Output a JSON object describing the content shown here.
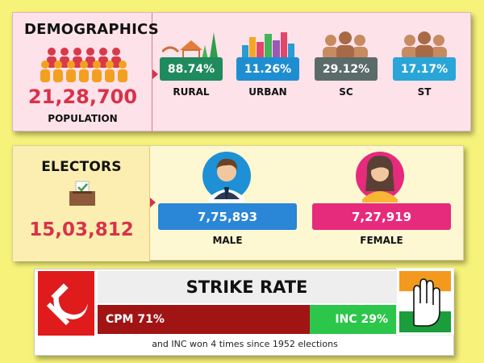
{
  "demographics": {
    "title": "DEMOGRAPHICS",
    "population_value": "21,28,700",
    "population_label": "POPULATION",
    "stats": [
      {
        "value": "88.74%",
        "label": "RURAL",
        "color": "#1f8a5e"
      },
      {
        "value": "11.26%",
        "label": "URBAN",
        "color": "#1f8ed1"
      },
      {
        "value": "29.12%",
        "label": "SC",
        "color": "#5b6b6a"
      },
      {
        "value": "17.17%",
        "label": "ST",
        "color": "#2aa5d8"
      }
    ]
  },
  "electors": {
    "title": "ELECTORS",
    "total": "15,03,812",
    "male": {
      "value": "7,75,893",
      "label": "MALE",
      "color": "#2a86d6"
    },
    "female": {
      "value": "7,27,919",
      "label": "FEMALE",
      "color": "#e62a7c"
    }
  },
  "strike_rate": {
    "title": "STRIKE RATE",
    "cpm": {
      "label": "CPM 71%",
      "share": 71,
      "color": "#a01414"
    },
    "inc": {
      "label": "INC 29%",
      "share": 29,
      "color": "#2cc64a"
    },
    "footnote": "and INC won 4 times since 1952 elections"
  }
}
